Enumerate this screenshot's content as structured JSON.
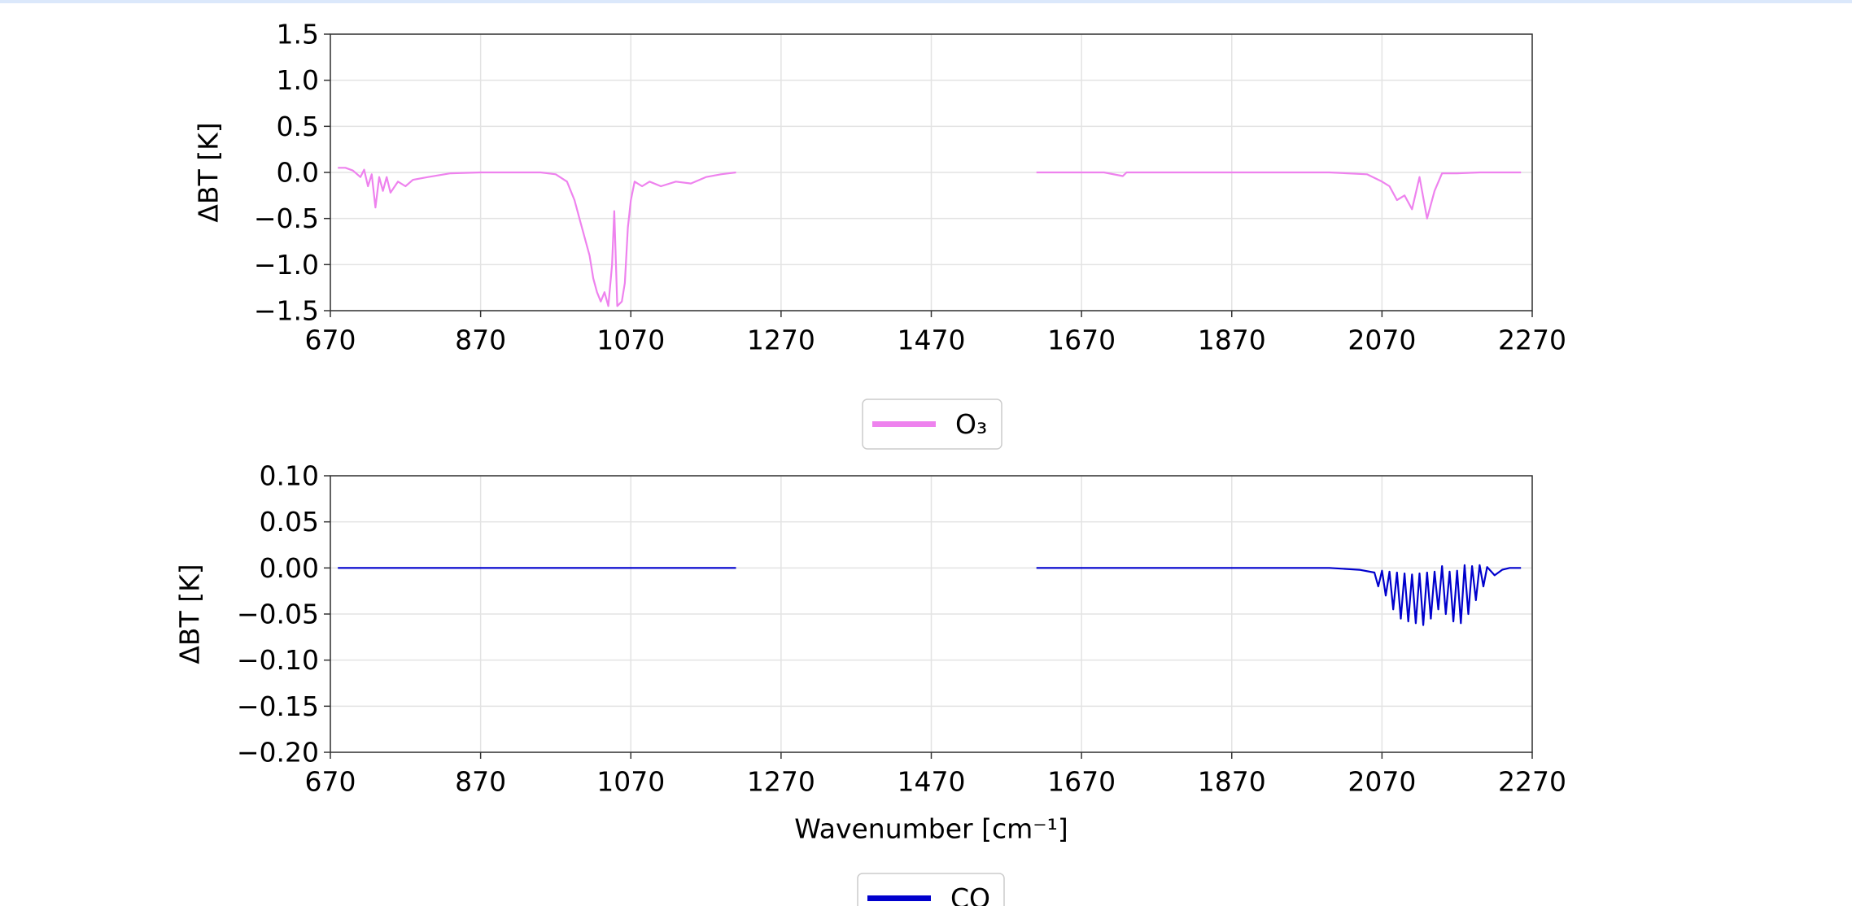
{
  "chart_data": [
    {
      "type": "line",
      "ylabel": "ΔBT [K]",
      "x": [
        680,
        690,
        700,
        710,
        715,
        720,
        725,
        730,
        735,
        740,
        745,
        750,
        760,
        770,
        780,
        800,
        830,
        870,
        950,
        970,
        985,
        995,
        1005,
        1015,
        1020,
        1025,
        1030,
        1035,
        1040,
        1045,
        1048,
        1052,
        1058,
        1062,
        1066,
        1070,
        1075,
        1085,
        1095,
        1110,
        1130,
        1150,
        1170,
        1190,
        1210,
        1400,
        1610,
        1700,
        1725,
        1730,
        1800,
        1900,
        2000,
        2050,
        2070,
        2080,
        2090,
        2100,
        2110,
        2120,
        2130,
        2140,
        2150,
        2170,
        2200,
        2255
      ],
      "series": [
        {
          "name": "O₃",
          "color": "#ee82ee",
          "values": [
            0.05,
            0.05,
            0.02,
            -0.05,
            0.03,
            -0.15,
            -0.02,
            -0.38,
            -0.05,
            -0.2,
            -0.05,
            -0.22,
            -0.1,
            -0.15,
            -0.08,
            -0.05,
            -0.01,
            0,
            0,
            -0.02,
            -0.1,
            -0.3,
            -0.6,
            -0.9,
            -1.15,
            -1.3,
            -1.4,
            -1.3,
            -1.45,
            -1.0,
            -0.42,
            -1.45,
            -1.4,
            -1.2,
            -0.6,
            -0.3,
            -0.1,
            -0.15,
            -0.1,
            -0.15,
            -0.1,
            -0.12,
            -0.05,
            -0.02,
            0,
            null,
            0,
            0,
            -0.04,
            0,
            0,
            0,
            0,
            -0.02,
            -0.1,
            -0.15,
            -0.3,
            -0.25,
            -0.4,
            -0.05,
            -0.5,
            -0.2,
            -0.01,
            -0.01,
            0,
            0
          ]
        }
      ],
      "xlim": [
        670,
        2270
      ],
      "xticks": [
        670,
        870,
        1070,
        1270,
        1470,
        1670,
        1870,
        2070,
        2270
      ],
      "ylim": [
        -1.5,
        1.5
      ],
      "yticks": [
        {
          "value": -1.5,
          "label": "−1.5"
        },
        {
          "value": -1.0,
          "label": "−1.0"
        },
        {
          "value": -0.5,
          "label": "−0.5"
        },
        {
          "value": 0,
          "label": "0.0"
        },
        0.5,
        {
          "value": 1.0,
          "label": "1.0"
        },
        1.5
      ],
      "grid": true
    },
    {
      "type": "line",
      "ylabel": "ΔBT [K]",
      "xlabel": "Wavenumber [cm⁻¹]",
      "x": [
        680,
        1210,
        1400,
        1610,
        2000,
        2040,
        2060,
        2065,
        2070,
        2075,
        2080,
        2085,
        2090,
        2095,
        2100,
        2105,
        2110,
        2115,
        2120,
        2125,
        2130,
        2135,
        2140,
        2145,
        2150,
        2155,
        2160,
        2165,
        2170,
        2175,
        2180,
        2185,
        2190,
        2195,
        2200,
        2205,
        2210,
        2220,
        2230,
        2240,
        2255
      ],
      "series": [
        {
          "name": "CO",
          "color": "#0000cd",
          "values": [
            0,
            0,
            null,
            0,
            0,
            -0.002,
            -0.005,
            -0.02,
            -0.003,
            -0.03,
            -0.004,
            -0.045,
            -0.005,
            -0.055,
            -0.006,
            -0.058,
            -0.007,
            -0.06,
            -0.006,
            -0.062,
            -0.005,
            -0.055,
            -0.004,
            -0.045,
            0.002,
            -0.05,
            -0.004,
            -0.058,
            -0.003,
            -0.06,
            0.003,
            -0.05,
            0.002,
            -0.035,
            0.003,
            -0.02,
            0.001,
            -0.008,
            -0.002,
            0,
            0
          ]
        }
      ],
      "xlim": [
        670,
        2270
      ],
      "xticks": [
        670,
        870,
        1070,
        1270,
        1470,
        1670,
        1870,
        2070,
        2270
      ],
      "ylim": [
        -0.2,
        0.1
      ],
      "yticks": [
        {
          "value": -0.2,
          "label": "−0.20"
        },
        {
          "value": -0.15,
          "label": "−0.15"
        },
        {
          "value": -0.1,
          "label": "−0.10"
        },
        {
          "value": -0.05,
          "label": "−0.05"
        },
        {
          "value": 0,
          "label": "0.00"
        },
        0.05,
        {
          "value": 0.1,
          "label": "0.10"
        }
      ],
      "grid": true
    }
  ]
}
